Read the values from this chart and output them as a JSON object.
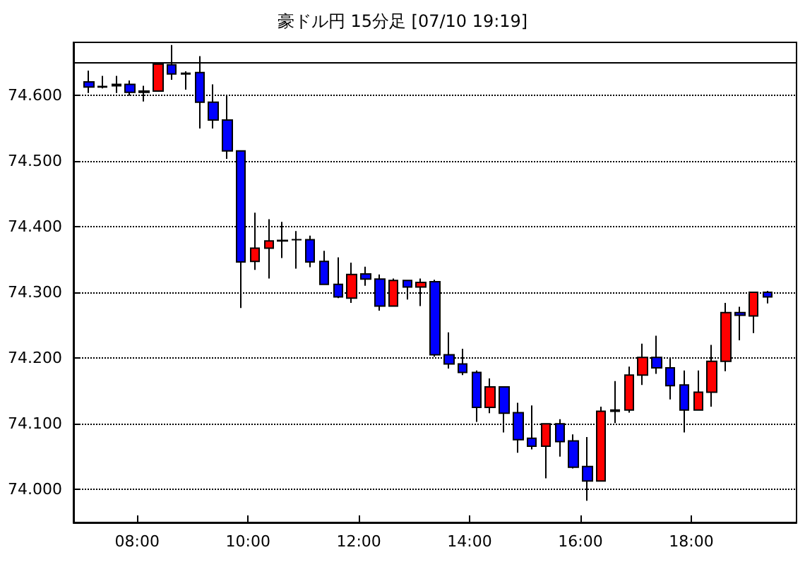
{
  "chart_data": {
    "type": "candlestick",
    "title": "豪ドル円 15分足 [07/10 19:19]",
    "x": [
      7.125,
      7.375,
      7.625,
      7.875,
      8.125,
      8.375,
      8.625,
      8.875,
      9.125,
      9.375,
      9.625,
      9.875,
      10.125,
      10.375,
      10.625,
      10.875,
      11.125,
      11.375,
      11.625,
      11.875,
      12.125,
      12.375,
      12.625,
      12.875,
      13.125,
      13.375,
      13.625,
      13.875,
      14.125,
      14.375,
      14.625,
      14.875,
      15.125,
      15.375,
      15.625,
      15.875,
      16.125,
      16.375,
      16.625,
      16.875,
      17.125,
      17.375,
      17.625,
      17.875,
      18.125,
      18.375,
      18.625,
      18.875,
      19.125,
      19.375
    ],
    "ohlc": [
      [
        74.62,
        74.637,
        74.603,
        74.612
      ],
      [
        74.613,
        74.629,
        74.61,
        74.612
      ],
      [
        74.616,
        74.629,
        74.603,
        74.614
      ],
      [
        74.616,
        74.622,
        74.599,
        74.604
      ],
      [
        74.604,
        74.614,
        74.59,
        74.606
      ],
      [
        74.606,
        74.648,
        74.605,
        74.647
      ],
      [
        74.646,
        74.676,
        74.623,
        74.632
      ],
      [
        74.632,
        74.636,
        74.608,
        74.633
      ],
      [
        74.634,
        74.659,
        74.549,
        74.589
      ],
      [
        74.589,
        74.616,
        74.549,
        74.562
      ],
      [
        74.562,
        74.599,
        74.503,
        74.515
      ],
      [
        74.515,
        74.516,
        74.276,
        74.346
      ],
      [
        74.347,
        74.421,
        74.334,
        74.367
      ],
      [
        74.367,
        74.411,
        74.321,
        74.378
      ],
      [
        74.378,
        74.407,
        74.352,
        74.379
      ],
      [
        74.38,
        74.393,
        74.336,
        74.38
      ],
      [
        74.38,
        74.386,
        74.338,
        74.346
      ],
      [
        74.347,
        74.363,
        74.311,
        74.312
      ],
      [
        74.312,
        74.353,
        74.291,
        74.293
      ],
      [
        74.291,
        74.345,
        74.284,
        74.327
      ],
      [
        74.328,
        74.339,
        74.31,
        74.32
      ],
      [
        74.32,
        74.327,
        74.272,
        74.279
      ],
      [
        74.279,
        74.321,
        74.278,
        74.318
      ],
      [
        74.318,
        74.319,
        74.289,
        74.308
      ],
      [
        74.308,
        74.321,
        74.279,
        74.315
      ],
      [
        74.316,
        74.319,
        74.202,
        74.205
      ],
      [
        74.205,
        74.239,
        74.184,
        74.191
      ],
      [
        74.191,
        74.214,
        74.174,
        74.178
      ],
      [
        74.178,
        74.181,
        74.103,
        74.125
      ],
      [
        74.125,
        74.169,
        74.116,
        74.156
      ],
      [
        74.156,
        74.156,
        74.087,
        74.116
      ],
      [
        74.117,
        74.132,
        74.056,
        74.076
      ],
      [
        74.078,
        74.128,
        74.061,
        74.066
      ],
      [
        74.066,
        74.1,
        74.017,
        74.1
      ],
      [
        74.1,
        74.107,
        74.05,
        74.073
      ],
      [
        74.074,
        74.084,
        74.032,
        74.034
      ],
      [
        74.035,
        74.08,
        73.983,
        74.013
      ],
      [
        74.013,
        74.126,
        74.012,
        74.119
      ],
      [
        74.119,
        74.165,
        74.101,
        74.121
      ],
      [
        74.121,
        74.187,
        74.117,
        74.174
      ],
      [
        74.174,
        74.222,
        74.159,
        74.201
      ],
      [
        74.201,
        74.234,
        74.176,
        74.185
      ],
      [
        74.185,
        74.199,
        74.137,
        74.158
      ],
      [
        74.159,
        74.181,
        74.087,
        74.121
      ],
      [
        74.121,
        74.181,
        74.121,
        74.148
      ],
      [
        74.148,
        74.22,
        74.126,
        74.195
      ],
      [
        74.195,
        74.284,
        74.18,
        74.269
      ],
      [
        74.269,
        74.278,
        74.227,
        74.265
      ],
      [
        74.264,
        74.3,
        74.238,
        74.3
      ],
      [
        74.3,
        74.302,
        74.283,
        74.293
      ]
    ],
    "colors": [
      "#0000ff",
      "#0000ff",
      "#0000ff",
      "#0000ff",
      "#ff0000",
      "#ff0000",
      "#0000ff",
      "#ff0000",
      "#0000ff",
      "#0000ff",
      "#0000ff",
      "#0000ff",
      "#ff0000",
      "#ff0000",
      "#ff0000",
      "#000000",
      "#0000ff",
      "#0000ff",
      "#0000ff",
      "#ff0000",
      "#0000ff",
      "#0000ff",
      "#ff0000",
      "#0000ff",
      "#ff0000",
      "#0000ff",
      "#0000ff",
      "#0000ff",
      "#0000ff",
      "#ff0000",
      "#0000ff",
      "#0000ff",
      "#0000ff",
      "#ff0000",
      "#0000ff",
      "#0000ff",
      "#0000ff",
      "#ff0000",
      "#ff0000",
      "#ff0000",
      "#ff0000",
      "#0000ff",
      "#0000ff",
      "#0000ff",
      "#ff0000",
      "#ff0000",
      "#ff0000",
      "#0000ff",
      "#ff0000",
      "#0000ff"
    ],
    "xlim": [
      6.85,
      19.9
    ],
    "xticks": [
      {
        "value": 8,
        "label": "08:00"
      },
      {
        "value": 10,
        "label": "10:00"
      },
      {
        "value": 12,
        "label": "12:00"
      },
      {
        "value": 14,
        "label": "14:00"
      },
      {
        "value": 16,
        "label": "16:00"
      },
      {
        "value": 18,
        "label": "18:00"
      }
    ],
    "ylim": [
      73.95,
      74.68
    ],
    "yticks": [
      {
        "value": 74.0,
        "label": "74.000"
      },
      {
        "value": 74.1,
        "label": "74.100"
      },
      {
        "value": 74.2,
        "label": "74.200"
      },
      {
        "value": 74.3,
        "label": "74.300"
      },
      {
        "value": 74.4,
        "label": "74.400"
      },
      {
        "value": 74.5,
        "label": "74.500"
      },
      {
        "value": 74.6,
        "label": "74.600"
      }
    ],
    "grid": "y",
    "ref_lines": [
      {
        "axis": "y",
        "value": 74.65,
        "color": "#000000",
        "line_style": "solid"
      }
    ]
  }
}
